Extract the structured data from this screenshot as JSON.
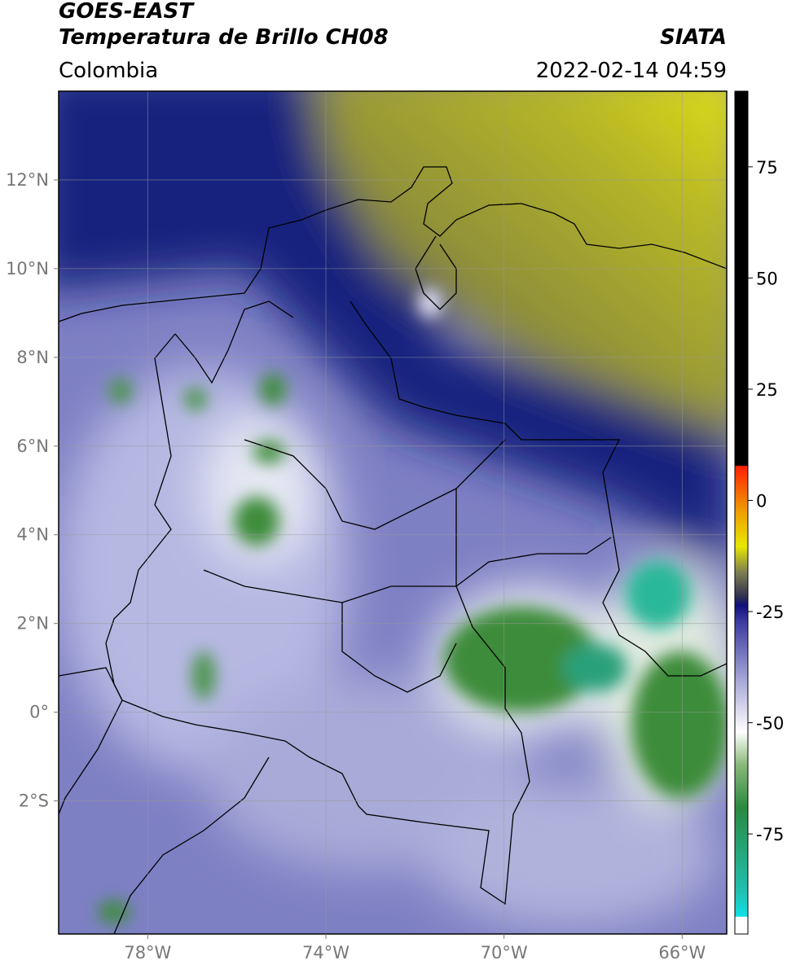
{
  "header": {
    "satellite": "GOES-EAST",
    "product": "Temperatura de Brillo CH08",
    "source": "SIATA",
    "region": "Colombia",
    "timestamp": "2022-02-14 04:59"
  },
  "map": {
    "xlim": [
      -80,
      -65
    ],
    "ylim": [
      -5,
      14
    ],
    "xticks": [
      {
        "value": -78,
        "label": "78°W"
      },
      {
        "value": -74,
        "label": "74°W"
      },
      {
        "value": -70,
        "label": "70°W"
      },
      {
        "value": -66,
        "label": "66°W"
      }
    ],
    "yticks": [
      {
        "value": 12,
        "label": "12°N"
      },
      {
        "value": 10,
        "label": "10°N"
      },
      {
        "value": 8,
        "label": "8°N"
      },
      {
        "value": 6,
        "label": "6°N"
      },
      {
        "value": 4,
        "label": "4°N"
      },
      {
        "value": 2,
        "label": "2°N"
      },
      {
        "value": 0,
        "label": "0°"
      },
      {
        "value": -2,
        "label": "2°S"
      }
    ],
    "grid": true
  },
  "colorbar": {
    "lim": [
      -97.5,
      92
    ],
    "ticks": [
      75,
      50,
      25,
      0,
      -25,
      -50,
      -75
    ]
  }
}
